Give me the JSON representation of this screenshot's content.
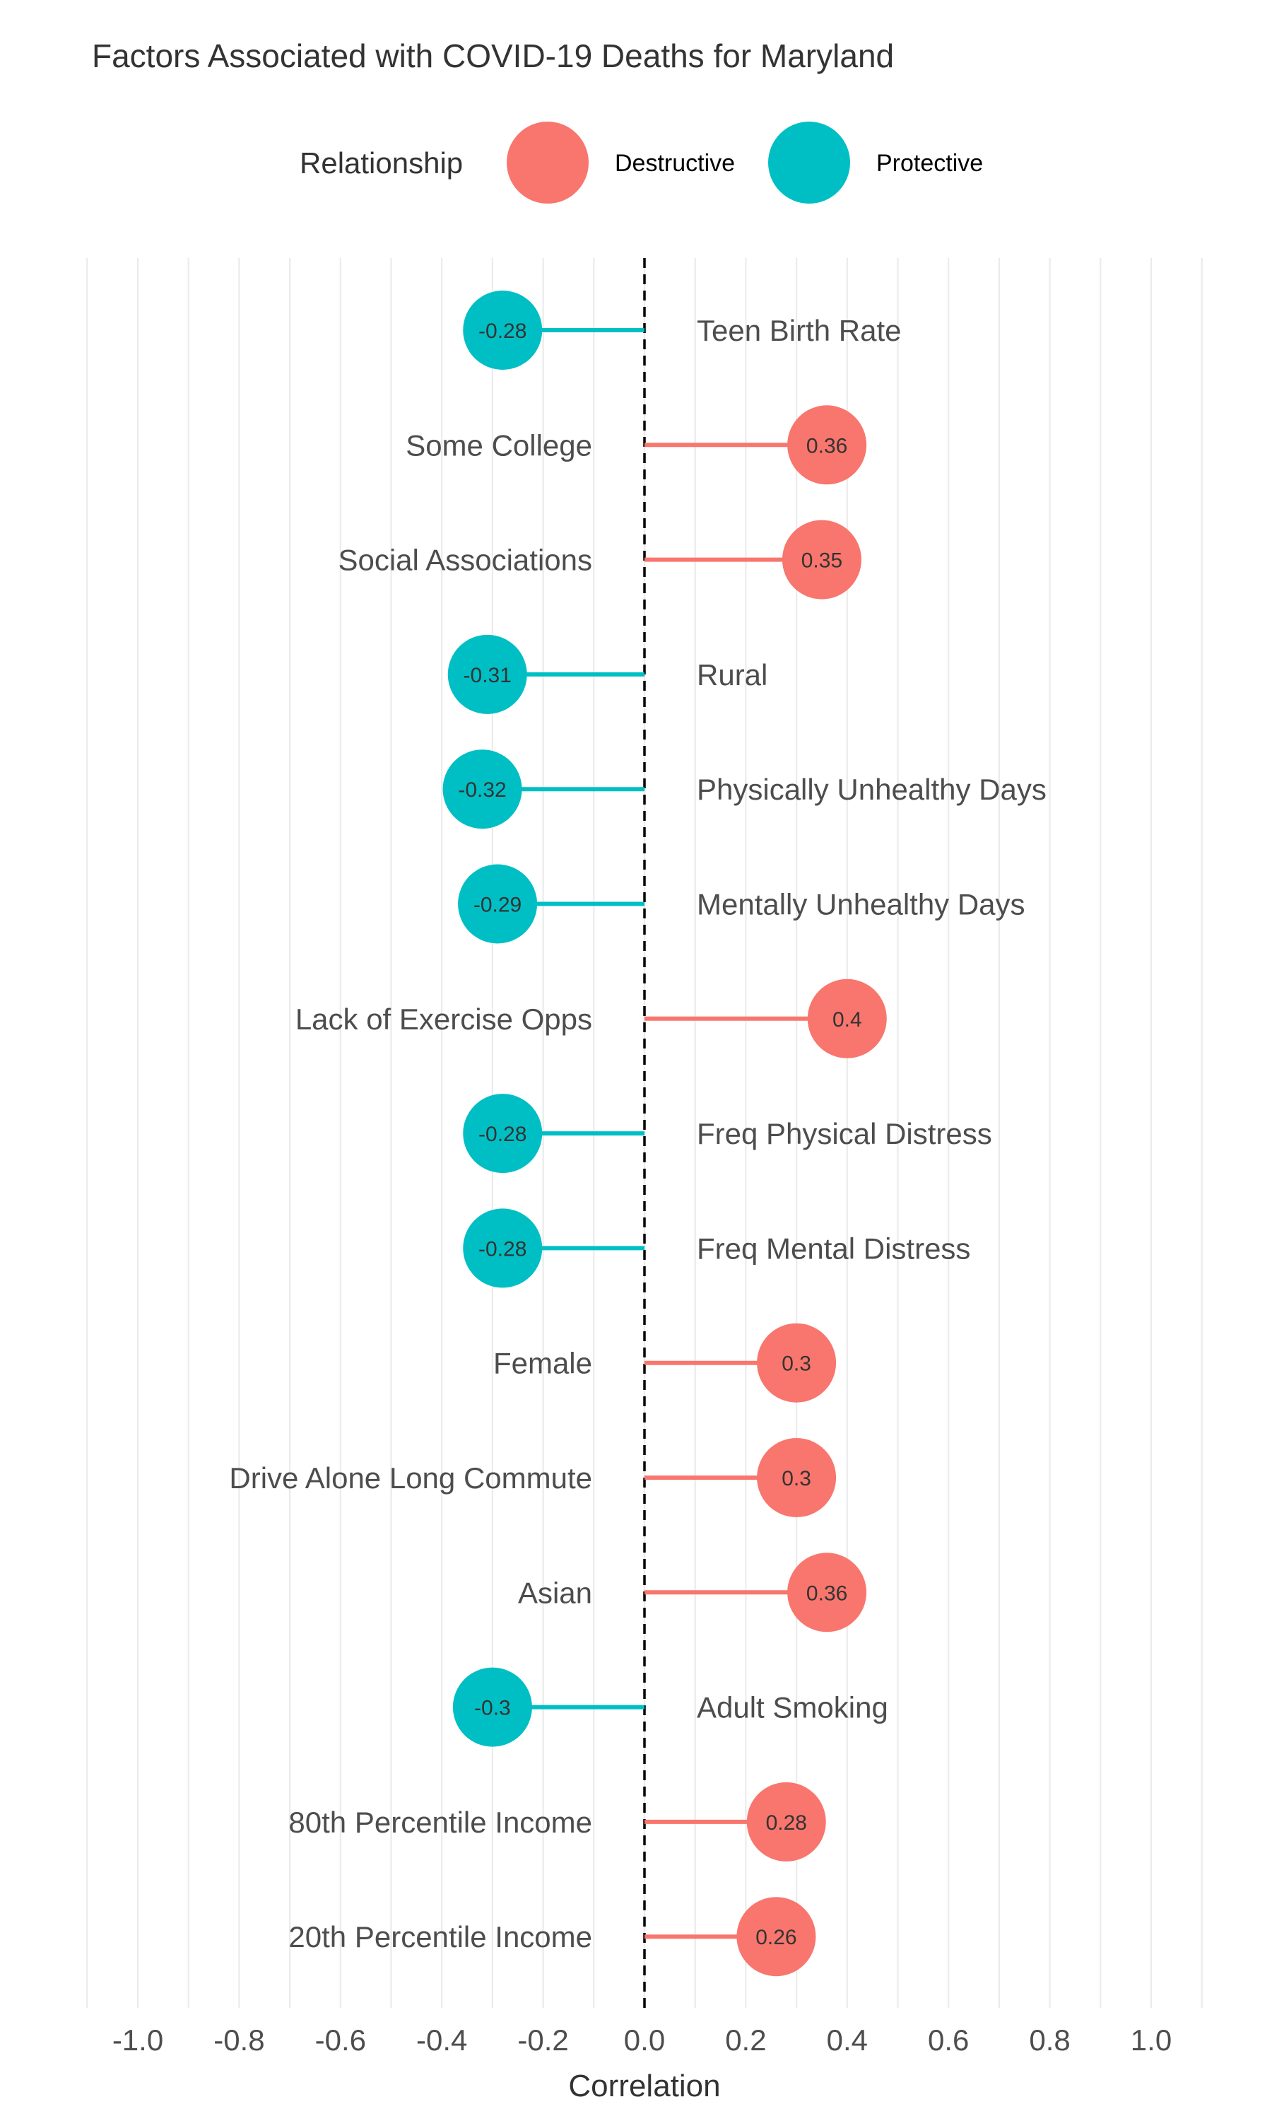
{
  "chart_data": {
    "type": "lollipop",
    "title": "Factors Associated with COVID-19 Deaths for Maryland",
    "xlabel": "Correlation",
    "ylabel": "",
    "xlim": [
      -1.1,
      1.1
    ],
    "x_ticks": [
      "-1.0",
      "-0.8",
      "-0.6",
      "-0.4",
      "-0.2",
      "0.0",
      "0.2",
      "0.4",
      "0.6",
      "0.8",
      "1.0"
    ],
    "x_tick_values": [
      -1.0,
      -0.8,
      -0.6,
      -0.4,
      -0.2,
      0.0,
      0.2,
      0.4,
      0.6,
      0.8,
      1.0
    ],
    "grid": true,
    "reference_line": 0,
    "legend": {
      "title": "Relationship",
      "position": "top",
      "entries": [
        {
          "name": "Destructive",
          "color": "#F8766D"
        },
        {
          "name": "Protective",
          "color": "#00BFC4"
        }
      ]
    },
    "points": [
      {
        "category": "Teen Birth Rate",
        "value": -0.28,
        "label": "-0.28",
        "relationship": "Protective"
      },
      {
        "category": "Some College",
        "value": 0.36,
        "label": "0.36",
        "relationship": "Destructive"
      },
      {
        "category": "Social Associations",
        "value": 0.35,
        "label": "0.35",
        "relationship": "Destructive"
      },
      {
        "category": "Rural",
        "value": -0.31,
        "label": "-0.31",
        "relationship": "Protective"
      },
      {
        "category": "Physically Unhealthy Days",
        "value": -0.32,
        "label": "-0.32",
        "relationship": "Protective"
      },
      {
        "category": "Mentally Unhealthy Days",
        "value": -0.29,
        "label": "-0.29",
        "relationship": "Protective"
      },
      {
        "category": "Lack of Exercise Opps",
        "value": 0.4,
        "label": "0.4",
        "relationship": "Destructive"
      },
      {
        "category": "Freq Physical Distress",
        "value": -0.28,
        "label": "-0.28",
        "relationship": "Protective"
      },
      {
        "category": "Freq Mental Distress",
        "value": -0.28,
        "label": "-0.28",
        "relationship": "Protective"
      },
      {
        "category": "Female",
        "value": 0.3,
        "label": "0.3",
        "relationship": "Destructive"
      },
      {
        "category": "Drive Alone Long Commute",
        "value": 0.3,
        "label": "0.3",
        "relationship": "Destructive"
      },
      {
        "category": "Asian",
        "value": 0.36,
        "label": "0.36",
        "relationship": "Destructive"
      },
      {
        "category": "Adult Smoking",
        "value": -0.3,
        "label": "-0.3",
        "relationship": "Protective"
      },
      {
        "category": "80th Percentile Income",
        "value": 0.28,
        "label": "0.28",
        "relationship": "Destructive"
      },
      {
        "category": "20th Percentile Income",
        "value": 0.26,
        "label": "0.26",
        "relationship": "Destructive"
      }
    ]
  }
}
